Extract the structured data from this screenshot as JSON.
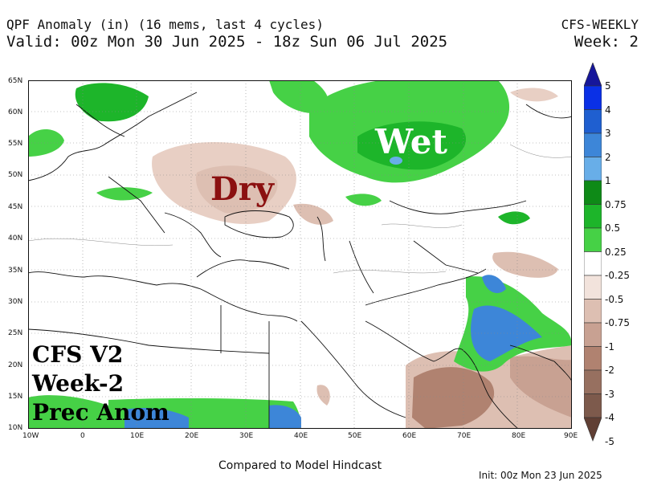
{
  "header": {
    "line1": "QPF Anomaly (in) (16 mems, last 4 cycles)",
    "line2": "Valid: 00z Mon 30 Jun 2025 - 18z Sun 06 Jul 2025",
    "model": "CFS-WEEKLY",
    "week": "Week: 2"
  },
  "map": {
    "lat_labels": [
      "65N",
      "60N",
      "55N",
      "50N",
      "45N",
      "40N",
      "35N",
      "30N",
      "25N",
      "20N",
      "15N",
      "10N"
    ],
    "lon_labels": [
      "10W",
      "0",
      "10E",
      "20E",
      "30E",
      "40E",
      "50E",
      "60E",
      "70E",
      "80E",
      "90E"
    ],
    "annotations": {
      "wet": "Wet",
      "dry": "Dry"
    },
    "overlay_lines": [
      "CFS V2",
      "Week-2",
      "Prec Anom"
    ],
    "colors": {
      "wet_green": "#33cc33",
      "dark_green": "#109910",
      "blue": "#2a6fd6",
      "dry_brown": "#b08270",
      "light_brown": "#e8cfc4",
      "border": "#111111"
    }
  },
  "colorbar": {
    "labels": [
      "5",
      "4",
      "3",
      "2",
      "1",
      "0.75",
      "0.5",
      "0.25",
      "-0.25",
      "-0.5",
      "-0.75",
      "-1",
      "-2",
      "-3",
      "-4",
      "-5"
    ],
    "colors": [
      "#16169a",
      "#0a30e6",
      "#1f5fd0",
      "#3d86d8",
      "#68aee8",
      "#0e8a17",
      "#1db52a",
      "#46d146",
      "#ffffff",
      "#f2e3dc",
      "#ddbfb2",
      "#c8a192",
      "#b08270",
      "#977060",
      "#7d5a4c",
      "#603f34"
    ]
  },
  "footer": {
    "compare": "Compared to Model Hindcast",
    "init": "Init: 00z Mon 23 Jun 2025"
  }
}
